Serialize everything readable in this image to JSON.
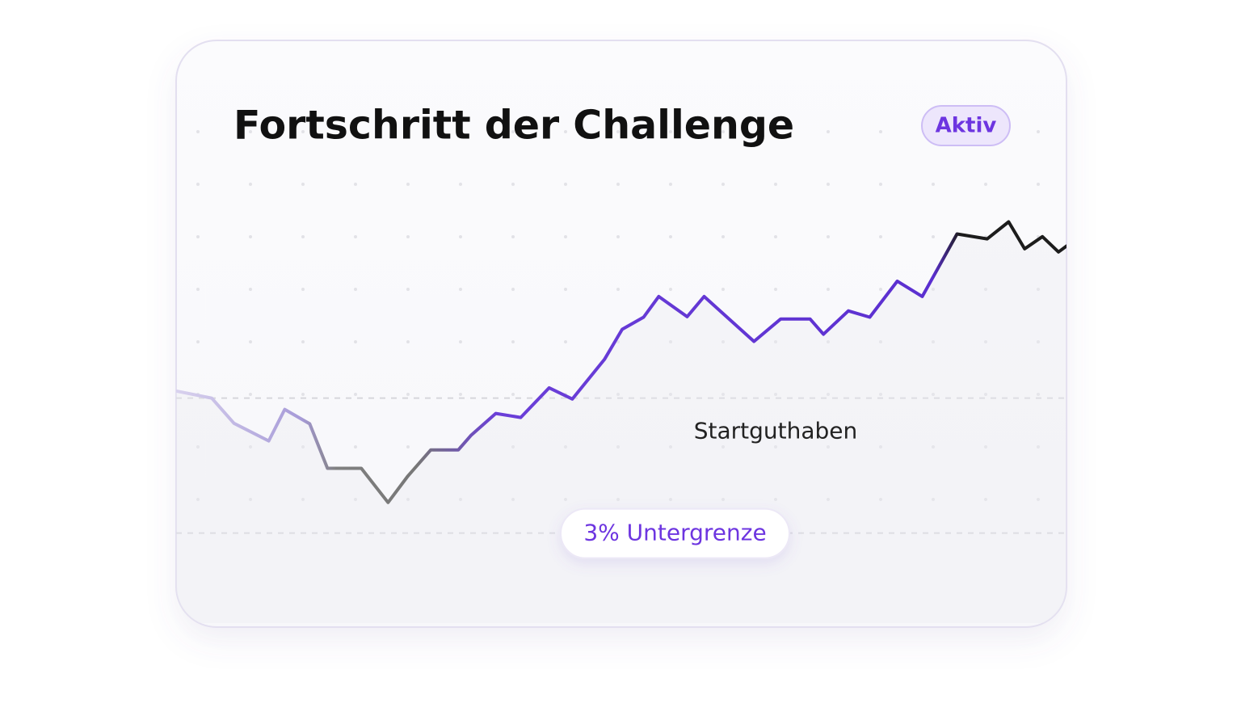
{
  "chart_data": {
    "type": "line",
    "title": "Fortschritt der Challenge",
    "badge": "Aktiv",
    "x": [
      0,
      4.0,
      6.5,
      10.4,
      12.2,
      15.0,
      17.0,
      20.8,
      23.8,
      26.0,
      28.6,
      31.7,
      33.1,
      35.9,
      38.7,
      41.9,
      44.5,
      48.1,
      50.1,
      52.5,
      54.2,
      57.4,
      59.3,
      64.9,
      67.9,
      71.2,
      72.7,
      75.5,
      77.9,
      81.0,
      83.8,
      87.7,
      91.1,
      93.5,
      95.3,
      97.3,
      99.1,
      100
    ],
    "values": [
      100.16,
      100.0,
      99.44,
      99.05,
      99.75,
      99.43,
      98.44,
      98.44,
      97.68,
      98.26,
      98.85,
      98.85,
      99.17,
      99.66,
      99.57,
      100.23,
      99.98,
      100.86,
      101.53,
      101.8,
      102.26,
      101.81,
      102.26,
      101.26,
      101.76,
      101.76,
      101.42,
      101.94,
      101.8,
      102.6,
      102.26,
      103.65,
      103.54,
      103.92,
      103.32,
      103.59,
      103.25,
      103.38
    ],
    "xlim": [
      0,
      100
    ],
    "ylim": [
      95,
      107
    ],
    "reference_lines": [
      {
        "label": "Startguthaben",
        "value": 100
      },
      {
        "label": "3% Untergrenze",
        "value": 97
      }
    ]
  }
}
